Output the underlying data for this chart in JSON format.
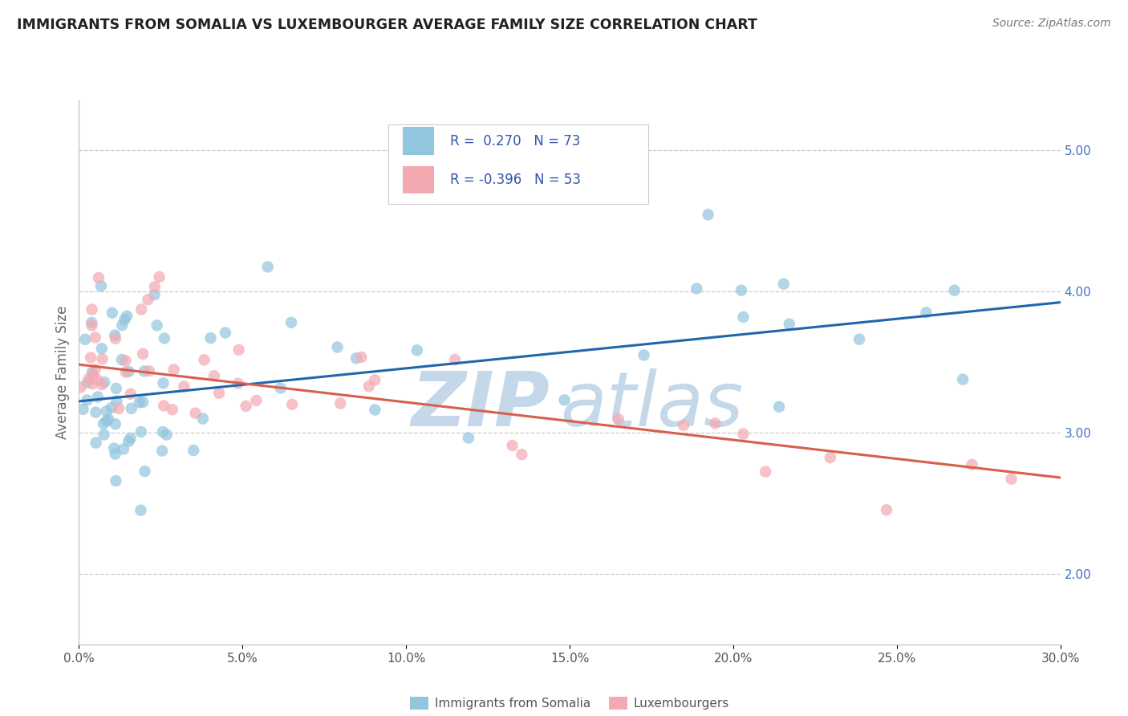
{
  "title": "IMMIGRANTS FROM SOMALIA VS LUXEMBOURGER AVERAGE FAMILY SIZE CORRELATION CHART",
  "source": "Source: ZipAtlas.com",
  "ylabel": "Average Family Size",
  "xlabel_ticks": [
    "0.0%",
    "5.0%",
    "10.0%",
    "15.0%",
    "20.0%",
    "25.0%",
    "30.0%"
  ],
  "xlabel_vals": [
    0.0,
    5.0,
    10.0,
    15.0,
    20.0,
    25.0,
    30.0
  ],
  "xlim": [
    0.0,
    30.0
  ],
  "ylim": [
    1.5,
    5.35
  ],
  "yticks_right": [
    2.0,
    3.0,
    4.0,
    5.0
  ],
  "r_blue": 0.27,
  "n_blue": 73,
  "r_pink": -0.396,
  "n_pink": 53,
  "legend_label_blue": "Immigrants from Somalia",
  "legend_label_pink": "Luxembourgers",
  "blue_color": "#92c5de",
  "pink_color": "#f4a9b0",
  "blue_line_color": "#2166ac",
  "pink_line_color": "#d6604d",
  "watermark_zip": "ZIP",
  "watermark_atlas": "atlas",
  "watermark_color": "#c5d8ea",
  "blue_trend_start": 3.22,
  "blue_trend_end": 3.92,
  "pink_trend_start": 3.48,
  "pink_trend_end": 2.68
}
